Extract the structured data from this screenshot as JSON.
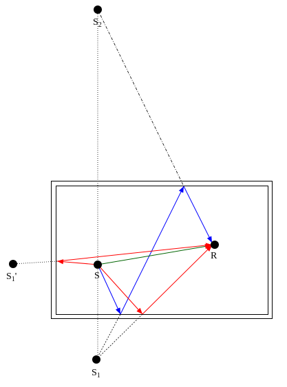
{
  "nodes": [
    {
      "label": "S",
      "sub": "2"
    },
    {
      "label": "S"
    },
    {
      "label": "R"
    },
    {
      "label": "S",
      "sub": "1"
    },
    {
      "label": "S",
      "sub": "1",
      "suffix": "'"
    }
  ]
}
